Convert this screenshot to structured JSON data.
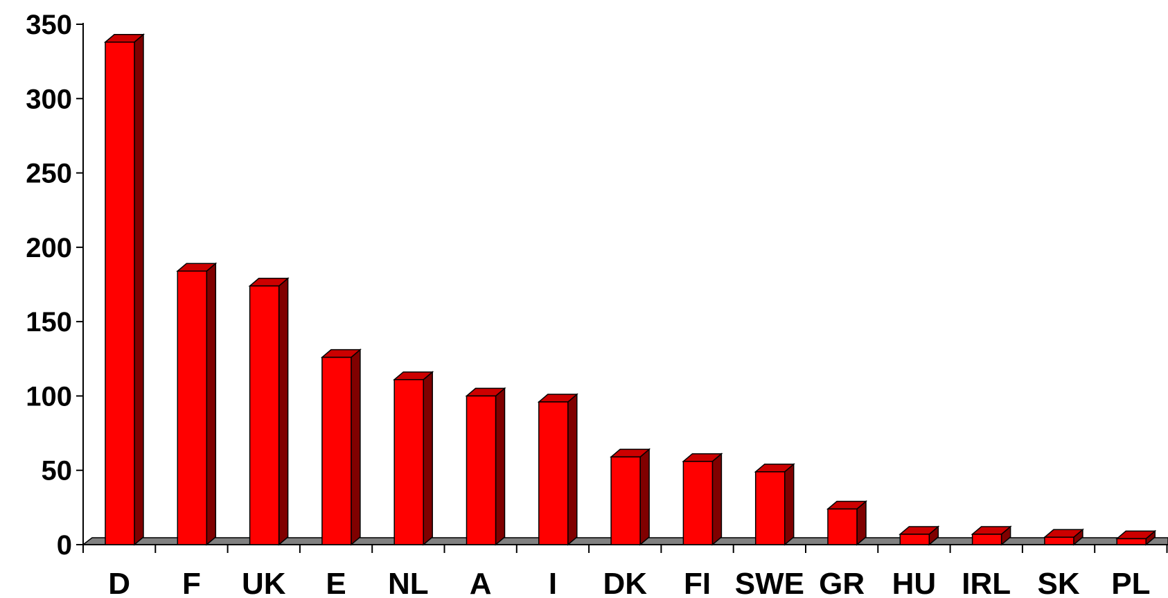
{
  "chart_data": {
    "type": "bar",
    "categories": [
      "D",
      "F",
      "UK",
      "E",
      "NL",
      "A",
      "I",
      "DK",
      "FI",
      "SWE",
      "GR",
      "HU",
      "IRL",
      "SK",
      "PL"
    ],
    "values": [
      338,
      184,
      174,
      126,
      111,
      100,
      96,
      59,
      56,
      49,
      24,
      7,
      7,
      5,
      4
    ],
    "title": "",
    "xlabel": "",
    "ylabel": "",
    "ylim": [
      0,
      350
    ],
    "yticks": [
      0,
      50,
      100,
      150,
      200,
      250,
      300,
      350
    ],
    "grid": false,
    "legend": "none",
    "style": "3d",
    "colors": {
      "bar_front": "#ff0000",
      "bar_top": "#cc0000",
      "bar_side": "#800000",
      "floor": "#808080",
      "outline": "#000000"
    }
  }
}
